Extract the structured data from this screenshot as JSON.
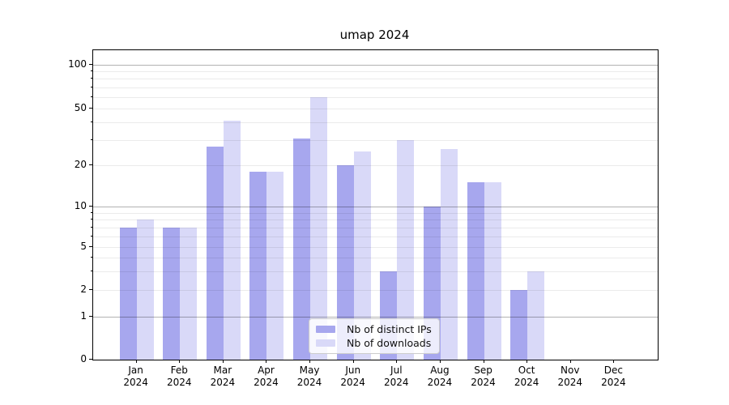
{
  "chart_data": {
    "type": "bar",
    "title": "umap 2024",
    "x_ticks": [
      {
        "month": "Jan",
        "year": "2024"
      },
      {
        "month": "Feb",
        "year": "2024"
      },
      {
        "month": "Mar",
        "year": "2024"
      },
      {
        "month": "Apr",
        "year": "2024"
      },
      {
        "month": "May",
        "year": "2024"
      },
      {
        "month": "Jun",
        "year": "2024"
      },
      {
        "month": "Jul",
        "year": "2024"
      },
      {
        "month": "Aug",
        "year": "2024"
      },
      {
        "month": "Sep",
        "year": "2024"
      },
      {
        "month": "Oct",
        "year": "2024"
      },
      {
        "month": "Nov",
        "year": "2024"
      },
      {
        "month": "Dec",
        "year": "2024"
      }
    ],
    "series": [
      {
        "name": "Nb of distinct IPs",
        "color": "#a7a7ee",
        "values": [
          7,
          7,
          27,
          18,
          31,
          20,
          3,
          10,
          15,
          2,
          0,
          0
        ]
      },
      {
        "name": "Nb of downloads",
        "color": "#d9d9f8",
        "values": [
          8,
          7,
          41,
          18,
          60,
          25,
          30,
          26,
          15,
          3,
          0,
          0
        ]
      }
    ],
    "y_axis": {
      "scale": "symlog",
      "tick_labels": [
        0,
        1,
        2,
        5,
        10,
        20,
        50,
        100
      ],
      "major_gridlines": [
        1,
        10,
        100
      ],
      "minor_gridlines": [
        2,
        3,
        4,
        5,
        6,
        7,
        8,
        9,
        20,
        30,
        40,
        50,
        60,
        70,
        80,
        90
      ],
      "ylim": [
        0,
        120
      ]
    },
    "legend_position": "lower center",
    "grid": true
  }
}
